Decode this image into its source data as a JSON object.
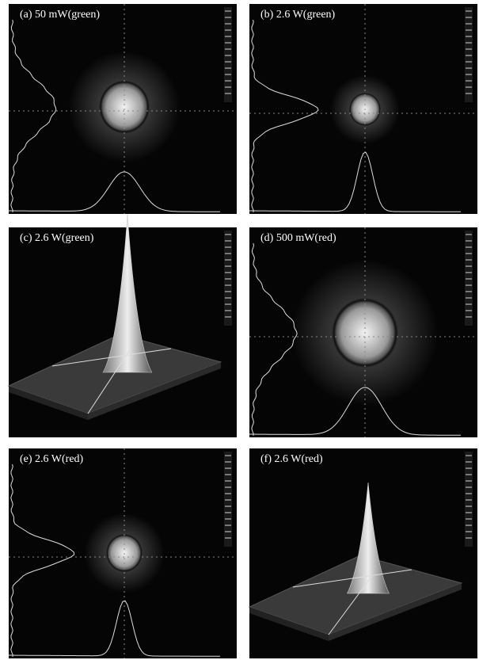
{
  "panels": [
    {
      "label": "(a) 50 mW(green)"
    },
    {
      "label": "(b) 2.6 W(green)"
    },
    {
      "label": "(c) 2.6 W(green)"
    },
    {
      "label": "(d) 500 mW(red)"
    },
    {
      "label": "(e) 2.6 W(red)"
    },
    {
      "label": "(f) 2.6 W(red)"
    }
  ]
}
